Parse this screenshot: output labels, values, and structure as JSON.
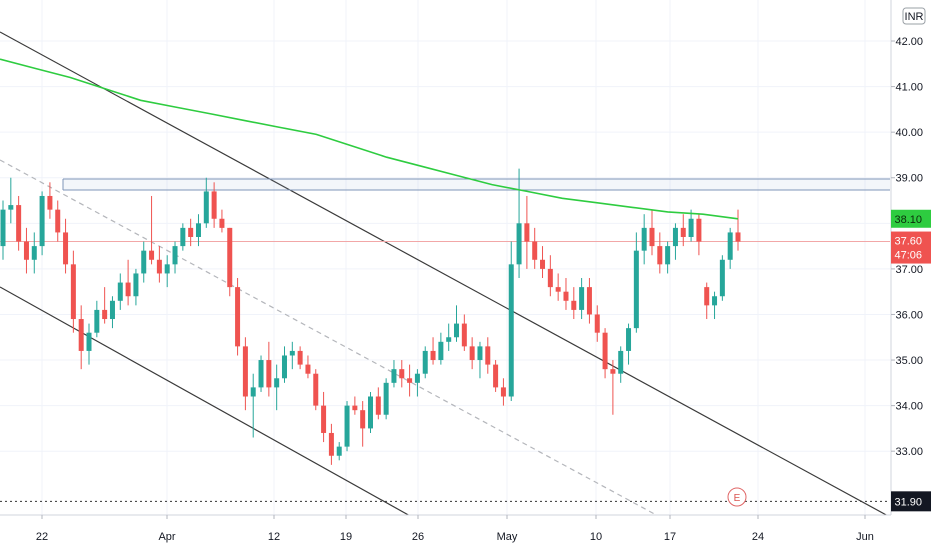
{
  "chart_data": {
    "type": "candlestick",
    "currency": "INR",
    "y_axis": {
      "ticks": [
        "42.00",
        "41.00",
        "40.00",
        "39.00",
        "38.00",
        "37.00",
        "36.00",
        "35.00",
        "34.00",
        "33.00"
      ],
      "ylim": [
        31.6,
        42.9
      ]
    },
    "x_axis": {
      "ticks": [
        "22",
        "Apr",
        "12",
        "19",
        "26",
        "May",
        "10",
        "17",
        "24",
        "Jun"
      ]
    },
    "price_tags": {
      "ma_value": "38.10",
      "last_price": "37.60",
      "countdown": "47:06",
      "line_level": "31.90"
    },
    "event_marker": "E",
    "candles": [
      [
        37.5,
        38.5,
        37.2,
        38.3
      ],
      [
        38.3,
        39.0,
        38.0,
        38.4
      ],
      [
        38.4,
        38.6,
        37.4,
        37.6
      ],
      [
        37.6,
        37.9,
        36.9,
        37.2
      ],
      [
        37.2,
        37.8,
        36.9,
        37.5
      ],
      [
        37.5,
        38.7,
        37.3,
        38.6
      ],
      [
        38.6,
        38.9,
        38.1,
        38.3
      ],
      [
        38.3,
        38.5,
        37.6,
        37.8
      ],
      [
        37.8,
        38.1,
        36.9,
        37.1
      ],
      [
        37.1,
        37.4,
        35.6,
        35.9
      ],
      [
        35.9,
        36.2,
        34.8,
        35.2
      ],
      [
        35.2,
        35.8,
        34.9,
        35.6
      ],
      [
        35.6,
        36.3,
        35.5,
        36.1
      ],
      [
        36.1,
        36.6,
        35.8,
        35.9
      ],
      [
        35.9,
        36.4,
        35.7,
        36.3
      ],
      [
        36.3,
        36.9,
        36.1,
        36.7
      ],
      [
        36.7,
        37.2,
        36.2,
        36.4
      ],
      [
        36.4,
        37.0,
        36.2,
        36.9
      ],
      [
        36.9,
        37.6,
        36.7,
        37.4
      ],
      [
        37.4,
        38.6,
        37.1,
        37.2
      ],
      [
        37.2,
        37.5,
        36.7,
        36.9
      ],
      [
        36.9,
        37.3,
        36.6,
        37.1
      ],
      [
        37.1,
        37.6,
        36.9,
        37.5
      ],
      [
        37.5,
        38.0,
        37.4,
        37.9
      ],
      [
        37.9,
        38.1,
        37.5,
        37.7
      ],
      [
        37.7,
        38.2,
        37.5,
        38.0
      ],
      [
        38.0,
        39.0,
        37.9,
        38.7
      ],
      [
        38.7,
        38.9,
        37.9,
        38.1
      ],
      [
        38.1,
        38.3,
        37.8,
        37.9
      ],
      [
        37.9,
        37.9,
        36.4,
        36.6
      ],
      [
        36.6,
        36.8,
        35.1,
        35.3
      ],
      [
        35.3,
        35.5,
        33.9,
        34.2
      ],
      [
        34.2,
        34.7,
        33.3,
        34.4
      ],
      [
        34.4,
        35.1,
        34.3,
        35.0
      ],
      [
        35.0,
        35.4,
        34.2,
        34.4
      ],
      [
        34.4,
        34.9,
        33.9,
        34.6
      ],
      [
        34.6,
        35.3,
        34.5,
        35.1
      ],
      [
        35.1,
        35.4,
        34.8,
        35.2
      ],
      [
        35.2,
        35.3,
        34.8,
        34.9
      ],
      [
        34.9,
        35.1,
        34.6,
        34.7
      ],
      [
        34.7,
        34.8,
        33.9,
        34.0
      ],
      [
        34.0,
        34.3,
        33.2,
        33.4
      ],
      [
        33.4,
        33.6,
        32.7,
        32.9
      ],
      [
        32.9,
        33.2,
        32.8,
        33.1
      ],
      [
        33.1,
        34.1,
        33.0,
        34.0
      ],
      [
        34.0,
        34.2,
        33.8,
        33.9
      ],
      [
        33.9,
        34.1,
        33.1,
        33.5
      ],
      [
        33.5,
        34.3,
        33.4,
        34.2
      ],
      [
        34.2,
        34.4,
        33.7,
        33.8
      ],
      [
        33.8,
        34.6,
        33.7,
        34.5
      ],
      [
        34.5,
        35.0,
        34.4,
        34.8
      ],
      [
        34.8,
        35.0,
        34.4,
        34.6
      ],
      [
        34.6,
        34.9,
        34.2,
        34.5
      ],
      [
        34.5,
        34.8,
        34.2,
        34.7
      ],
      [
        34.7,
        35.3,
        34.6,
        35.2
      ],
      [
        35.2,
        35.5,
        34.9,
        35.0
      ],
      [
        35.0,
        35.6,
        34.9,
        35.4
      ],
      [
        35.4,
        35.8,
        35.2,
        35.5
      ],
      [
        35.5,
        36.2,
        35.4,
        35.8
      ],
      [
        35.8,
        36.0,
        35.2,
        35.3
      ],
      [
        35.3,
        35.5,
        34.8,
        35.0
      ],
      [
        35.0,
        35.4,
        34.6,
        35.3
      ],
      [
        35.3,
        35.5,
        34.7,
        34.9
      ],
      [
        34.9,
        35.0,
        34.3,
        34.4
      ],
      [
        34.4,
        34.6,
        34.0,
        34.2
      ],
      [
        34.2,
        37.6,
        34.1,
        37.1
      ],
      [
        37.1,
        39.2,
        36.8,
        38.0
      ],
      [
        38.0,
        38.6,
        37.0,
        37.6
      ],
      [
        37.6,
        37.9,
        37.0,
        37.2
      ],
      [
        37.2,
        37.5,
        36.8,
        37.0
      ],
      [
        37.0,
        37.3,
        36.4,
        36.6
      ],
      [
        36.6,
        36.9,
        36.3,
        36.5
      ],
      [
        36.5,
        36.8,
        36.1,
        36.3
      ],
      [
        36.3,
        36.6,
        35.9,
        36.1
      ],
      [
        36.1,
        36.8,
        35.9,
        36.6
      ],
      [
        36.6,
        36.8,
        35.8,
        36.0
      ],
      [
        36.0,
        36.2,
        35.4,
        35.6
      ],
      [
        35.6,
        35.7,
        34.6,
        34.8
      ],
      [
        34.8,
        35.0,
        33.8,
        34.7
      ],
      [
        34.7,
        35.3,
        34.5,
        35.2
      ],
      [
        35.2,
        35.8,
        34.9,
        35.7
      ],
      [
        35.7,
        37.8,
        35.6,
        37.4
      ],
      [
        37.4,
        38.2,
        37.1,
        37.9
      ],
      [
        37.9,
        38.3,
        37.3,
        37.5
      ],
      [
        37.5,
        37.8,
        36.9,
        37.1
      ],
      [
        37.1,
        37.6,
        36.9,
        37.5
      ],
      [
        37.5,
        38.0,
        37.2,
        37.9
      ],
      [
        37.9,
        38.2,
        37.5,
        37.7
      ],
      [
        37.7,
        38.3,
        37.6,
        38.1
      ],
      [
        38.1,
        38.2,
        37.3,
        37.6
      ],
      [
        36.6,
        36.7,
        35.9,
        36.2
      ],
      [
        36.2,
        36.5,
        35.9,
        36.4
      ],
      [
        36.4,
        37.3,
        36.3,
        37.2
      ],
      [
        37.2,
        37.9,
        37.0,
        37.8
      ],
      [
        37.8,
        38.3,
        37.4,
        37.6
      ]
    ],
    "series": [
      {
        "type": "moving_average",
        "color": "#2ecc40",
        "values": [
          41.6,
          41.4,
          41.2,
          40.95,
          40.7,
          40.55,
          40.4,
          40.25,
          40.1,
          39.95,
          39.7,
          39.45,
          39.25,
          39.05,
          38.85,
          38.7,
          38.55,
          38.45,
          38.35,
          38.25,
          38.2,
          38.1
        ]
      }
    ],
    "trendlines": [
      "descending channel upper",
      "descending channel lower",
      "dashed mid-channel",
      "horizontal resistance zone 38.98-39.2",
      "dotted level 31.90"
    ],
    "colors": {
      "up": "#26a69a",
      "down": "#ef5350",
      "moving_average": "#2ecc40",
      "last_price_line": "#f2a7a7",
      "resistance": "#7f95b8",
      "trendline": "#3a3a3a",
      "dashed_line": "#b4b6bb",
      "grid": "#f0f3fa"
    }
  }
}
